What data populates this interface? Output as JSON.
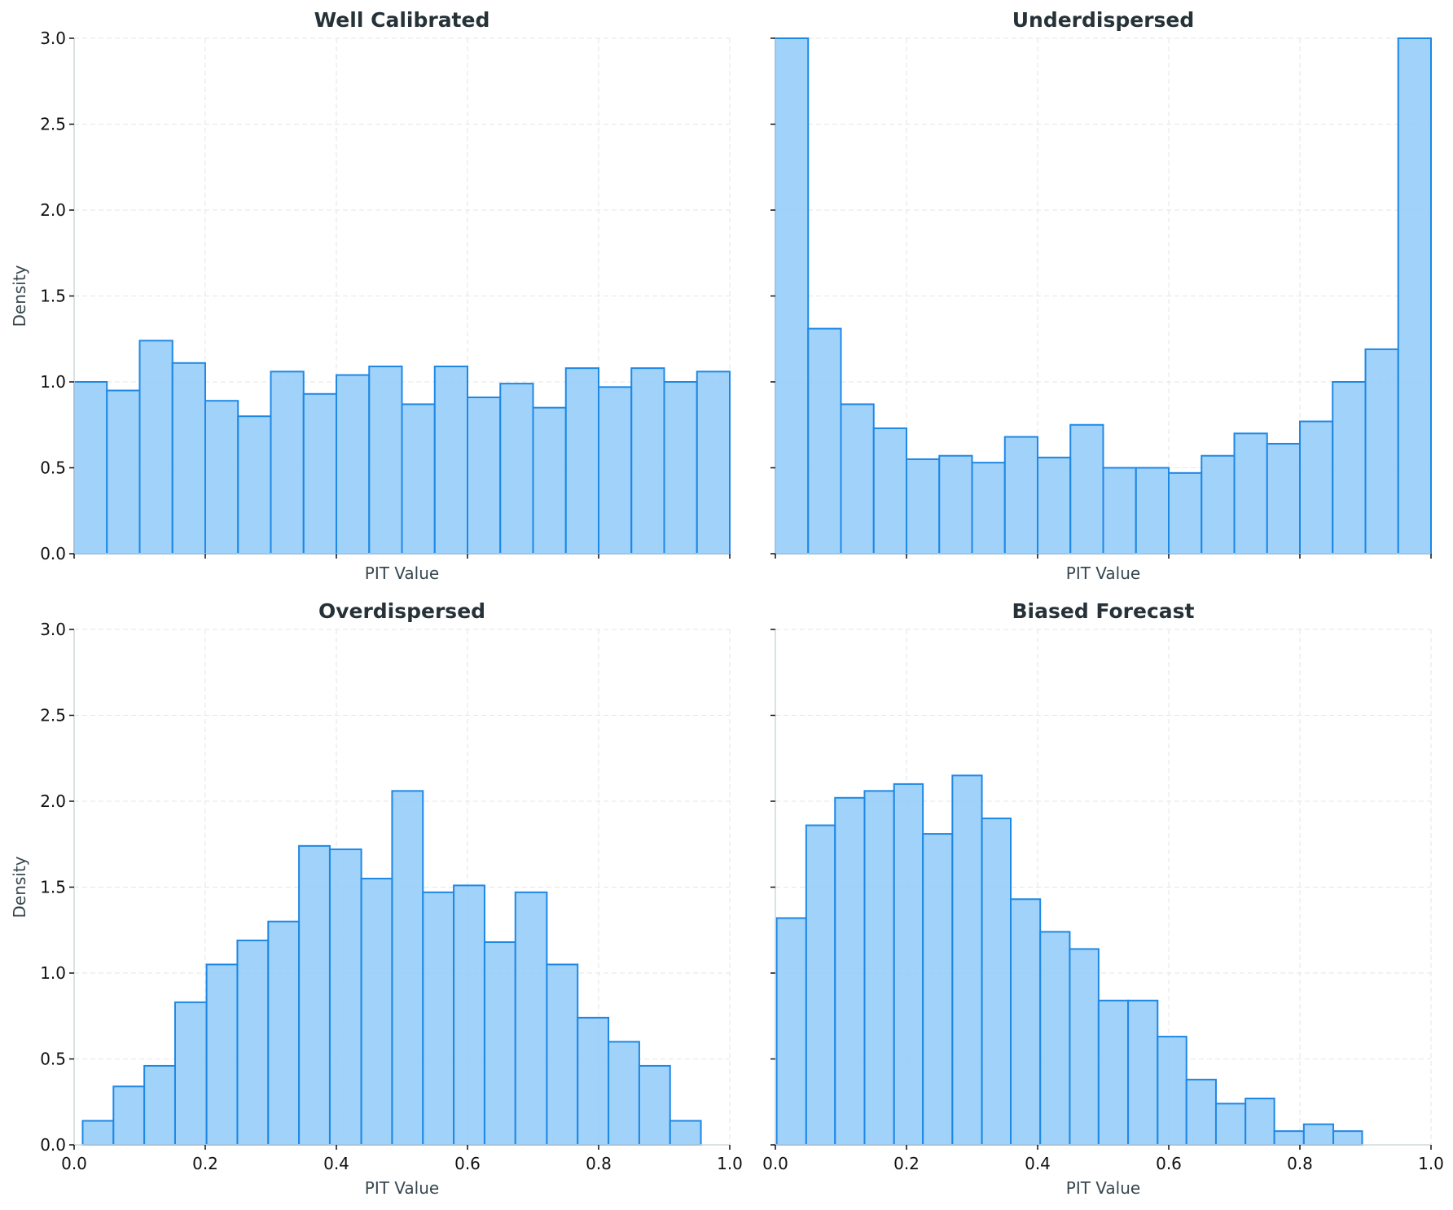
{
  "chart_data": [
    {
      "type": "bar",
      "title": "Well Calibrated",
      "xlabel": "PIT Value",
      "ylabel": "Density",
      "xlim": [
        0.0,
        1.0
      ],
      "ylim": [
        0.0,
        3.0
      ],
      "grid": true,
      "show_x_tick_labels": false,
      "show_y_tick_labels": true,
      "x_ticks": [
        "0.0",
        "0.2",
        "0.4",
        "0.6",
        "0.8",
        "1.0"
      ],
      "y_ticks": [
        "0.0",
        "0.5",
        "1.0",
        "1.5",
        "2.0",
        "2.5",
        "3.0"
      ],
      "bin_edges": [
        0.0,
        0.05,
        0.1,
        0.15,
        0.2,
        0.25,
        0.3,
        0.35,
        0.4,
        0.45,
        0.5,
        0.55,
        0.6,
        0.65,
        0.7,
        0.75,
        0.8,
        0.85,
        0.9,
        0.95,
        1.0
      ],
      "values": [
        1.0,
        0.95,
        1.24,
        1.11,
        0.89,
        0.8,
        1.06,
        0.93,
        1.04,
        1.09,
        0.87,
        1.09,
        0.91,
        0.99,
        0.85,
        1.08,
        0.97,
        1.08,
        1.0,
        1.06
      ]
    },
    {
      "type": "bar",
      "title": "Underdispersed",
      "xlabel": "PIT Value",
      "ylabel": "",
      "xlim": [
        0.0,
        1.0
      ],
      "ylim": [
        0.0,
        3.0
      ],
      "grid": true,
      "show_x_tick_labels": false,
      "show_y_tick_labels": false,
      "x_ticks": [
        "0.0",
        "0.2",
        "0.4",
        "0.6",
        "0.8",
        "1.0"
      ],
      "y_ticks": [
        "0.0",
        "0.5",
        "1.0",
        "1.5",
        "2.0",
        "2.5",
        "3.0"
      ],
      "bin_edges": [
        0.0,
        0.05,
        0.1,
        0.15,
        0.2,
        0.25,
        0.3,
        0.35,
        0.4,
        0.45,
        0.5,
        0.55,
        0.6,
        0.65,
        0.7,
        0.75,
        0.8,
        0.85,
        0.9,
        0.95,
        1.0
      ],
      "values": [
        3.0,
        1.31,
        0.87,
        0.73,
        0.55,
        0.57,
        0.53,
        0.68,
        0.56,
        0.75,
        0.5,
        0.5,
        0.47,
        0.57,
        0.7,
        0.64,
        0.77,
        1.0,
        1.19,
        3.0
      ]
    },
    {
      "type": "bar",
      "title": "Overdispersed",
      "xlabel": "PIT Value",
      "ylabel": "Density",
      "xlim": [
        0.0,
        1.0
      ],
      "ylim": [
        0.0,
        3.0
      ],
      "grid": true,
      "show_x_tick_labels": true,
      "show_y_tick_labels": true,
      "x_ticks": [
        "0.0",
        "0.2",
        "0.4",
        "0.6",
        "0.8",
        "1.0"
      ],
      "y_ticks": [
        "0.0",
        "0.5",
        "1.0",
        "1.5",
        "2.0",
        "2.5",
        "3.0"
      ],
      "bin_edges": [
        0.013,
        0.06,
        0.107,
        0.154,
        0.202,
        0.249,
        0.296,
        0.343,
        0.39,
        0.438,
        0.485,
        0.532,
        0.579,
        0.626,
        0.673,
        0.721,
        0.768,
        0.815,
        0.862,
        0.909,
        0.956
      ],
      "values": [
        0.14,
        0.34,
        0.46,
        0.83,
        1.05,
        1.19,
        1.3,
        1.74,
        1.72,
        1.55,
        2.06,
        1.47,
        1.51,
        1.18,
        1.47,
        1.05,
        0.74,
        0.6,
        0.46,
        0.14
      ]
    },
    {
      "type": "bar",
      "title": "Biased Forecast",
      "xlabel": "PIT Value",
      "ylabel": "",
      "xlim": [
        0.0,
        1.0
      ],
      "ylim": [
        0.0,
        3.0
      ],
      "grid": true,
      "show_x_tick_labels": true,
      "show_y_tick_labels": false,
      "x_ticks": [
        "0.0",
        "0.2",
        "0.4",
        "0.6",
        "0.8",
        "1.0"
      ],
      "y_ticks": [
        "0.0",
        "0.5",
        "1.0",
        "1.5",
        "2.0",
        "2.5",
        "3.0"
      ],
      "bin_edges": [
        0.002,
        0.047,
        0.091,
        0.136,
        0.181,
        0.225,
        0.27,
        0.315,
        0.359,
        0.404,
        0.449,
        0.493,
        0.538,
        0.583,
        0.627,
        0.672,
        0.717,
        0.761,
        0.806,
        0.851,
        0.895
      ],
      "values": [
        1.32,
        1.86,
        2.02,
        2.06,
        2.1,
        1.81,
        2.15,
        1.9,
        1.43,
        1.24,
        1.14,
        0.84,
        0.84,
        0.63,
        0.38,
        0.24,
        0.27,
        0.08,
        0.12,
        0.08
      ]
    }
  ]
}
